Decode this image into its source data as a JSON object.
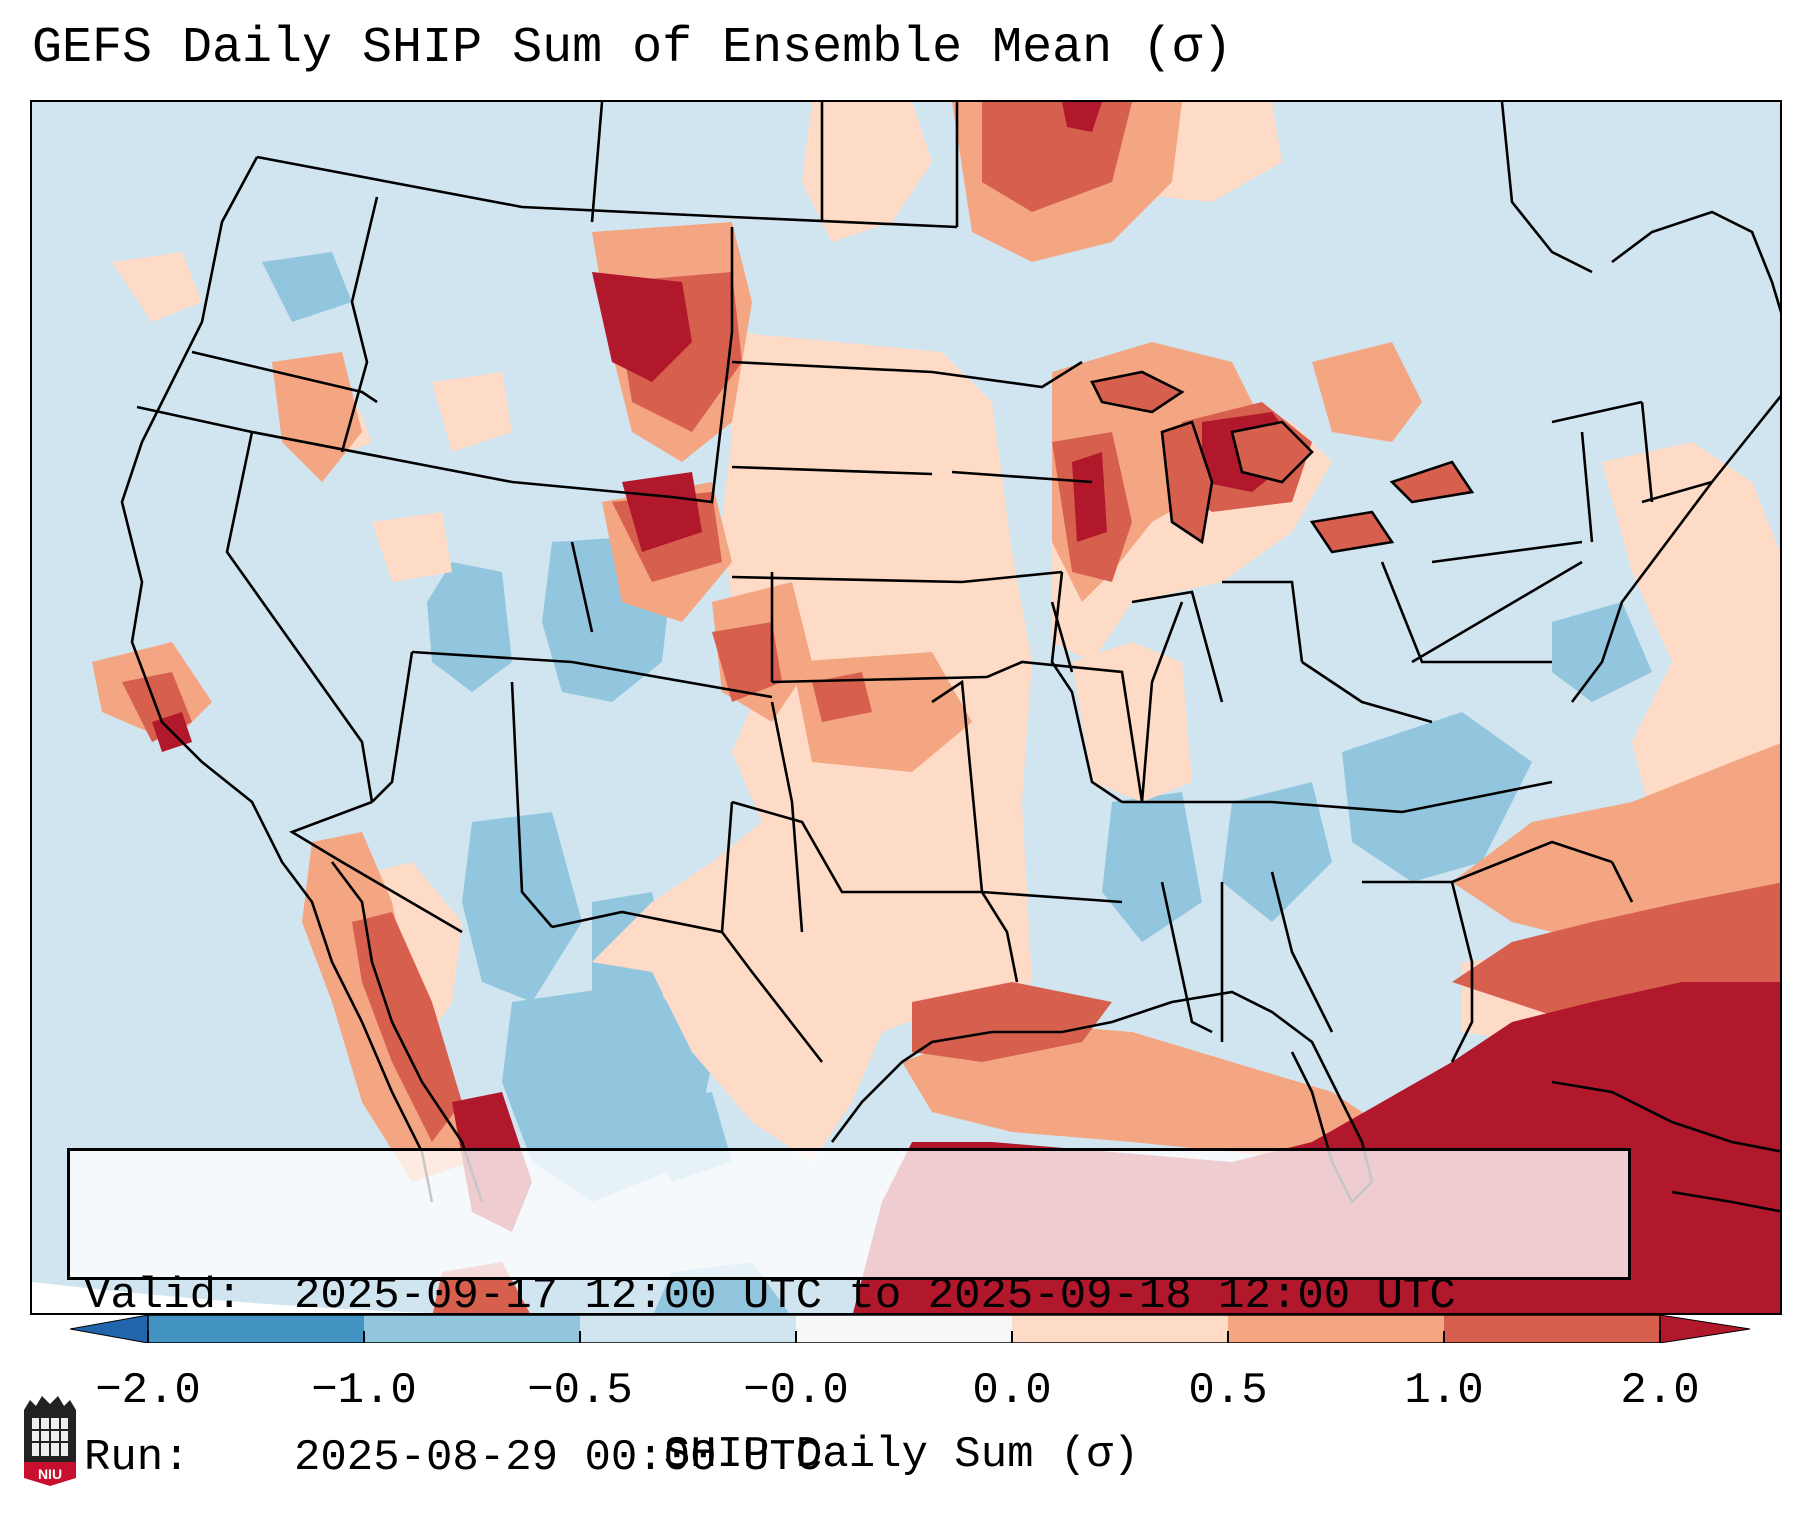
{
  "title": "GEFS Daily SHIP Sum of Ensemble Mean (σ)",
  "info": {
    "valid_key": "Valid:",
    "valid_value": "2025-09-17 12:00 UTC to 2025-09-18 12:00 UTC",
    "run_key": "Run:",
    "run_value": "2025-08-29 00:00 UTC"
  },
  "colorbar": {
    "label": "SHIP Daily Sum (σ)",
    "ticks": [
      "−2.0",
      "−1.0",
      "−0.5",
      "−0.0",
      "0.0",
      "0.5",
      "1.0",
      "2.0"
    ],
    "bin_colors": [
      "#4393c3",
      "#92c5de",
      "#d1e5f0",
      "#f7f7f7",
      "#fddbc7",
      "#f4a582",
      "#d6604d",
      "#b2182b"
    ],
    "under_color": "#2166ac",
    "over_color": "#b2182b",
    "extend": "both"
  },
  "legend_colors": {
    "strong_negative": "#92c5de",
    "weak_negative": "#d1e5f0",
    "weak_positive": "#fddbc7",
    "moderate_positive": "#f4a582",
    "strong_positive": "#d6604d",
    "extreme_positive": "#b2182b"
  },
  "logo": {
    "text": "NIU"
  }
}
